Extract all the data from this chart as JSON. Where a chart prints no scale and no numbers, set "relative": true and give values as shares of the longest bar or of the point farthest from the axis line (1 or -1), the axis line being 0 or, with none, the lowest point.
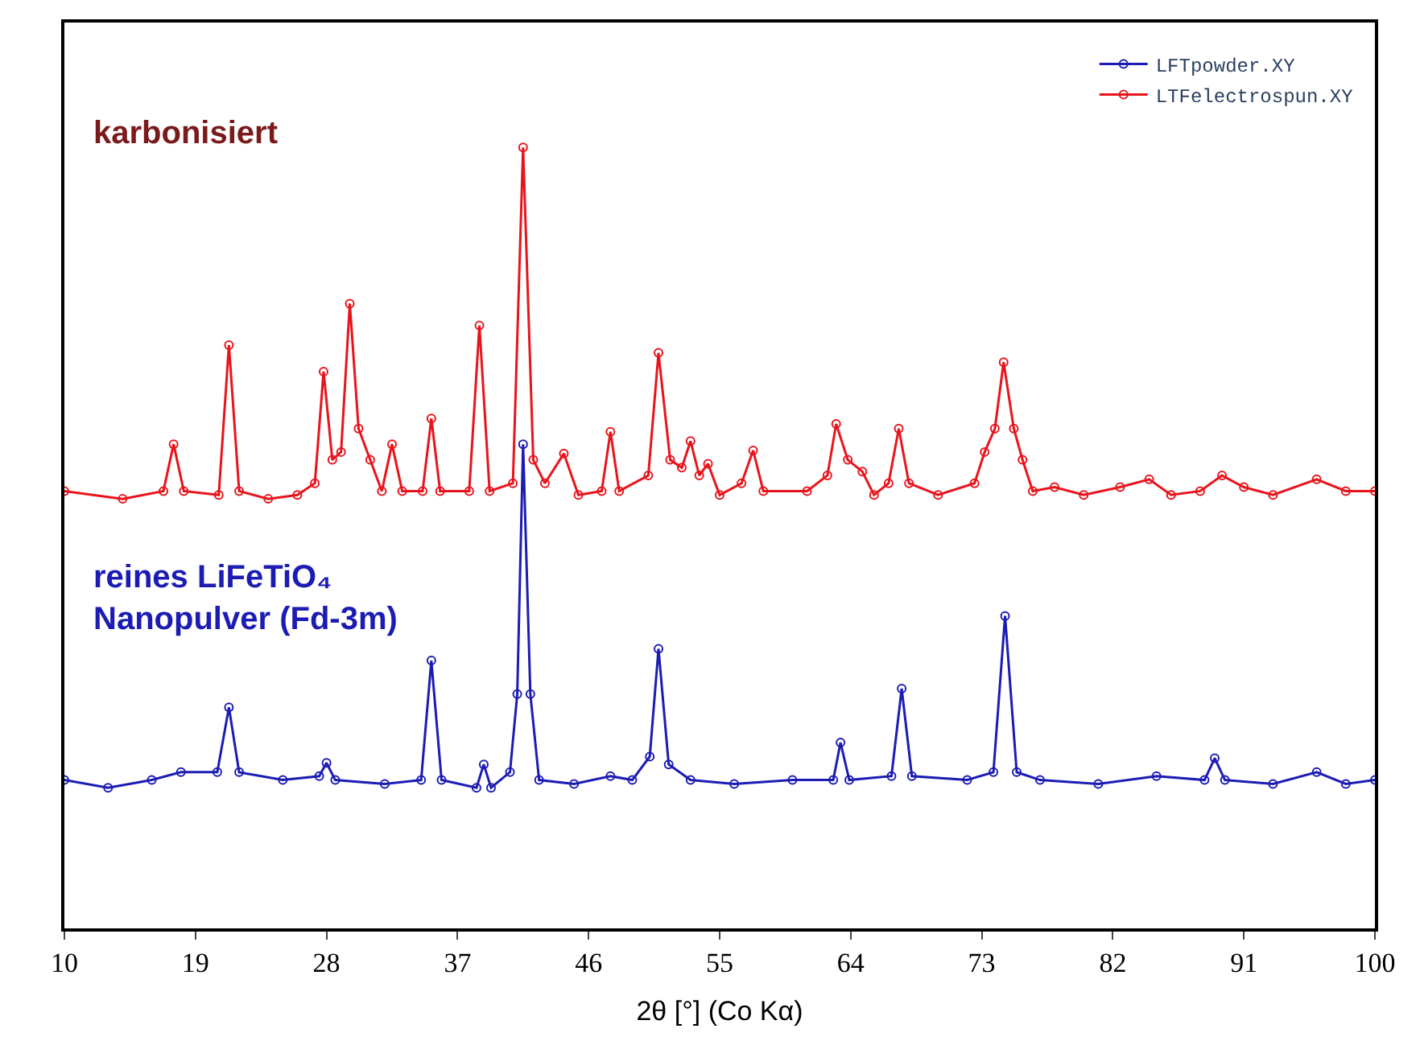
{
  "chart_data": {
    "type": "line",
    "relative": true,
    "xlabel": "2θ [°] (Co Kα)",
    "xlim": [
      10,
      100
    ],
    "xticks": [
      10,
      19,
      28,
      37,
      46,
      55,
      64,
      73,
      82,
      91,
      100
    ],
    "marker": "circle",
    "legend": "top right",
    "annotations": [
      "karbonisiert",
      "reines LiFeTiO₄\nNanopulver (Fd-3m)"
    ],
    "series": [
      {
        "name": "LFTpowder.XY",
        "color": "#1c1cb4",
        "x": [
          10,
          13,
          16,
          18,
          20.5,
          21.3,
          22,
          25,
          27.5,
          28,
          28.6,
          32,
          34.5,
          35.2,
          35.9,
          38.3,
          38.8,
          39.3,
          40.6,
          41.1,
          41.5,
          42,
          42.6,
          45,
          47.5,
          49,
          50.2,
          50.8,
          51.5,
          53,
          56,
          60,
          62.8,
          63.3,
          63.9,
          66.8,
          67.5,
          68.2,
          72,
          73.8,
          74.6,
          75.4,
          77,
          81,
          85,
          88.3,
          89,
          89.7,
          93,
          96,
          98,
          100
        ],
        "values": [
          0.19,
          0.18,
          0.19,
          0.2,
          0.2,
          0.283,
          0.2,
          0.19,
          0.195,
          0.212,
          0.19,
          0.185,
          0.19,
          0.343,
          0.19,
          0.18,
          0.21,
          0.18,
          0.2,
          0.3,
          0.62,
          0.3,
          0.19,
          0.185,
          0.195,
          0.19,
          0.22,
          0.358,
          0.21,
          0.19,
          0.185,
          0.19,
          0.19,
          0.238,
          0.19,
          0.195,
          0.307,
          0.195,
          0.19,
          0.2,
          0.4,
          0.2,
          0.19,
          0.185,
          0.195,
          0.19,
          0.218,
          0.19,
          0.185,
          0.2,
          0.185,
          0.19
        ]
      },
      {
        "name": "LTFelectrospun.XY",
        "color": "#e8141c",
        "x": [
          10,
          14,
          16.8,
          17.5,
          18.2,
          20.6,
          21.3,
          22,
          24,
          26,
          27.2,
          27.8,
          28.4,
          29,
          29.6,
          30.2,
          31,
          31.8,
          32.5,
          33.2,
          34.6,
          35.2,
          35.8,
          37.8,
          38.5,
          39.2,
          40.8,
          41.5,
          42.2,
          43,
          44.3,
          45.3,
          46.9,
          47.5,
          48.1,
          50.1,
          50.8,
          51.6,
          52.4,
          53,
          53.6,
          54.2,
          55,
          56.5,
          57.3,
          58,
          61,
          62.4,
          63,
          63.8,
          64.8,
          65.6,
          66.6,
          67.3,
          68,
          70,
          72.5,
          73.2,
          73.9,
          74.5,
          75.2,
          75.8,
          76.5,
          78,
          80,
          82.5,
          84.5,
          86,
          88,
          89.5,
          91,
          93,
          96,
          98,
          100
        ],
        "values": [
          0.56,
          0.55,
          0.56,
          0.62,
          0.56,
          0.555,
          0.747,
          0.56,
          0.55,
          0.555,
          0.57,
          0.713,
          0.6,
          0.61,
          0.8,
          0.64,
          0.6,
          0.56,
          0.62,
          0.56,
          0.56,
          0.653,
          0.56,
          0.56,
          0.772,
          0.56,
          0.57,
          1.0,
          0.6,
          0.57,
          0.608,
          0.555,
          0.56,
          0.636,
          0.56,
          0.58,
          0.737,
          0.6,
          0.59,
          0.624,
          0.58,
          0.595,
          0.555,
          0.57,
          0.612,
          0.56,
          0.56,
          0.58,
          0.646,
          0.6,
          0.585,
          0.555,
          0.57,
          0.64,
          0.57,
          0.555,
          0.57,
          0.61,
          0.64,
          0.725,
          0.64,
          0.6,
          0.56,
          0.565,
          0.555,
          0.565,
          0.575,
          0.555,
          0.56,
          0.58,
          0.565,
          0.555,
          0.575,
          0.56,
          0.56
        ]
      }
    ]
  }
}
